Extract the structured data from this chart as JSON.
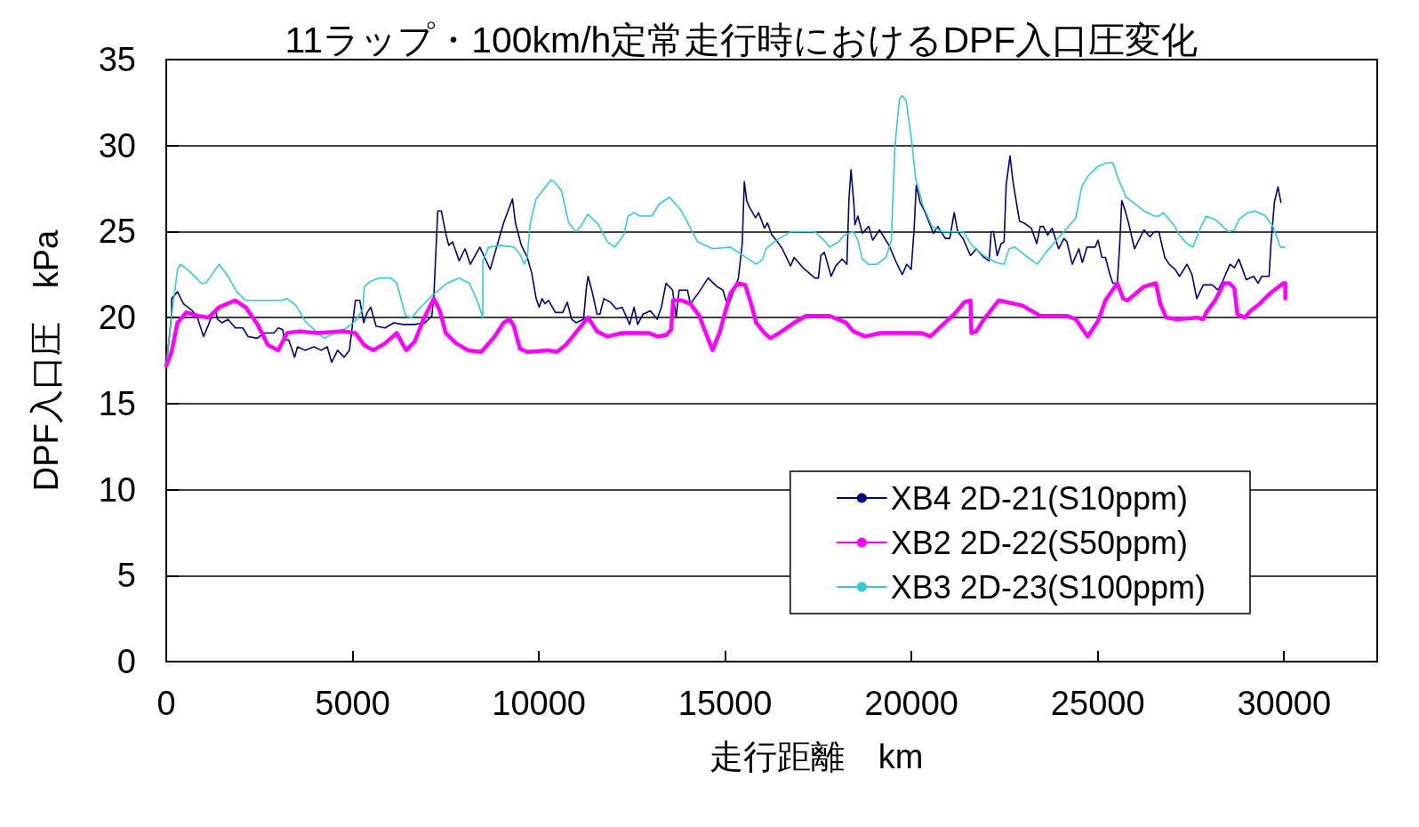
{
  "chart_data": {
    "type": "line",
    "title": "11ラップ・100km/h定常走行時におけるDPF入口圧変化",
    "xlabel": "走行距離　km",
    "ylabel": "DPF入口圧　kPa",
    "xlim": [
      0,
      32500
    ],
    "xticks": [
      0,
      5000,
      10000,
      15000,
      20000,
      25000,
      30000
    ],
    "ylim": [
      0,
      35
    ],
    "yticks": [
      0,
      5,
      10,
      15,
      20,
      25,
      30,
      35
    ],
    "grid": "y",
    "legend": "bottom right",
    "marker": "none",
    "line_style": "solid",
    "series": [
      {
        "name": "XB4 2D-21(S10ppm)",
        "color": "#000080",
        "x": [
          0,
          143,
          143,
          302,
          461,
          700,
          820,
          1002,
          1137,
          1257,
          1336,
          1376,
          1496,
          1655,
          1853,
          2052,
          2196,
          2450,
          2609,
          2888,
          3007,
          3126,
          3166,
          3286,
          3445,
          3524,
          3723,
          3962,
          4161,
          4320,
          4439,
          4598,
          4773,
          4916,
          5075,
          5195,
          5298,
          5393,
          5489,
          5632,
          5871,
          6109,
          6348,
          6666,
          6945,
          7128,
          7183,
          7287,
          7382,
          7501,
          7581,
          7684,
          7860,
          8019,
          8162,
          8416,
          8694,
          9053,
          9292,
          9371,
          9530,
          9689,
          9808,
          9928,
          10007,
          10087,
          10166,
          10261,
          10444,
          10643,
          10762,
          10881,
          11000,
          11199,
          11278,
          11322,
          11441,
          11561,
          11640,
          11744,
          11919,
          12078,
          12237,
          12436,
          12555,
          12651,
          12794,
          12993,
          13176,
          13287,
          13414,
          13589,
          13685,
          13764,
          13987,
          14067,
          14305,
          14544,
          14783,
          14942,
          15021,
          15101,
          15355,
          15459,
          15514,
          15578,
          15657,
          15816,
          15896,
          16055,
          16135,
          16254,
          16374,
          16533,
          16755,
          16851,
          17089,
          17407,
          17503,
          17567,
          17662,
          17845,
          17965,
          18140,
          18267,
          18323,
          18378,
          18458,
          18482,
          18561,
          18681,
          18856,
          18959,
          19142,
          19397,
          19595,
          19754,
          19874,
          19993,
          20073,
          20128,
          20232,
          20351,
          20590,
          20709,
          20908,
          21027,
          21147,
          21242,
          21385,
          21584,
          21743,
          21942,
          22085,
          22141,
          22200,
          22303,
          22406,
          22486,
          22542,
          22645,
          22725,
          22900,
          23019,
          23218,
          23361,
          23457,
          23536,
          23656,
          23775,
          23950,
          24093,
          24173,
          24316,
          24491,
          24586,
          24714,
          24928,
          25008,
          25111,
          25207,
          25326,
          25405,
          25525,
          25588,
          25644,
          25724,
          25827,
          25986,
          26241,
          26400,
          26519,
          26639,
          26798,
          26917,
          27076,
          27195,
          27394,
          27530,
          27657,
          27832,
          28070,
          28229,
          28349,
          28548,
          28667,
          28786,
          28985,
          29184,
          29303,
          29407,
          29598,
          29646,
          29741,
          29836,
          29916
        ],
        "values": [
          17.2,
          20.1,
          21.1,
          21.5,
          20.8,
          20.4,
          20.1,
          18.9,
          19.6,
          20.3,
          20.3,
          19.9,
          19.7,
          19.9,
          19.4,
          19.4,
          18.9,
          18.8,
          19.1,
          19.1,
          19.4,
          19.3,
          18.7,
          18.7,
          17.7,
          18.3,
          18.1,
          18.3,
          18.1,
          18.3,
          17.4,
          18.1,
          17.7,
          18.1,
          21.0,
          21.0,
          19.7,
          20.3,
          20.6,
          19.5,
          19.4,
          19.7,
          19.6,
          19.6,
          19.7,
          20.1,
          21.3,
          26.2,
          26.2,
          24.9,
          24.2,
          24.4,
          23.3,
          24.0,
          23.1,
          24.1,
          22.8,
          25.5,
          26.9,
          25.5,
          24.2,
          23.5,
          22.6,
          21.1,
          20.6,
          21.1,
          20.8,
          21.0,
          20.3,
          20.3,
          20.9,
          19.9,
          19.7,
          19.9,
          21.8,
          22.4,
          21.4,
          20.2,
          20.2,
          21.1,
          20.9,
          20.5,
          20.6,
          19.6,
          20.6,
          19.6,
          20.2,
          20.4,
          19.9,
          20.6,
          22.0,
          21.6,
          20.0,
          21.6,
          21.6,
          20.8,
          21.5,
          22.3,
          21.8,
          21.6,
          21.0,
          20.8,
          22.3,
          24.3,
          27.9,
          26.8,
          26.4,
          25.8,
          26.1,
          25.2,
          25.5,
          24.8,
          24.5,
          24.0,
          23.0,
          23.5,
          22.9,
          22.3,
          22.3,
          23.6,
          23.8,
          22.4,
          23.0,
          23.4,
          23.1,
          26.9,
          28.6,
          26.5,
          25.4,
          25.9,
          24.9,
          25.3,
          24.5,
          25.1,
          24.2,
          23.2,
          22.5,
          23.1,
          22.8,
          25.2,
          27.7,
          26.7,
          26.2,
          24.9,
          25.3,
          24.6,
          24.6,
          26.1,
          25.0,
          24.6,
          23.6,
          24.0,
          23.5,
          23.3,
          25.0,
          25.0,
          23.6,
          24.3,
          24.4,
          27.7,
          29.4,
          27.9,
          25.6,
          25.5,
          25.2,
          24.3,
          25.3,
          25.3,
          24.8,
          25.2,
          24.0,
          24.6,
          24.4,
          23.1,
          24.0,
          23.2,
          24.1,
          24.1,
          24.5,
          23.5,
          23.5,
          22.5,
          22.0,
          22.0,
          24.2,
          26.8,
          26.3,
          25.5,
          24.0,
          25.1,
          24.7,
          25.0,
          25.0,
          23.5,
          23.1,
          22.8,
          22.4,
          23.1,
          22.5,
          21.1,
          21.9,
          21.9,
          21.6,
          22.1,
          23.1,
          22.9,
          23.4,
          22.2,
          22.4,
          22.0,
          22.4,
          22.4,
          24.2,
          26.7,
          27.6,
          26.7
        ]
      },
      {
        "name": "XB2 2D-22(S50ppm)",
        "color": "#ff00ff",
        "x": [
          0,
          143,
          302,
          541,
          859,
          1137,
          1416,
          1853,
          2132,
          2450,
          2729,
          3007,
          3245,
          3564,
          4041,
          4757,
          5075,
          5314,
          5553,
          5871,
          6189,
          6332,
          6443,
          6666,
          6905,
          7183,
          7342,
          7501,
          7780,
          8099,
          8456,
          8814,
          9053,
          9212,
          9331,
          9490,
          9689,
          10245,
          10484,
          10722,
          11278,
          11322,
          11561,
          11839,
          12237,
          12953,
          13192,
          13430,
          13550,
          13605,
          13828,
          14067,
          14305,
          14464,
          14663,
          14862,
          15140,
          15339,
          15538,
          15697,
          15833,
          16055,
          16214,
          16453,
          16851,
          17169,
          17805,
          18243,
          18442,
          18760,
          19158,
          20271,
          20510,
          20749,
          21147,
          21425,
          21584,
          21608,
          21743,
          21942,
          22343,
          22979,
          23457,
          24173,
          24411,
          24730,
          25008,
          25207,
          25525,
          25684,
          25803,
          26241,
          26559,
          26678,
          26837,
          27116,
          27673,
          27832,
          27912,
          28150,
          28389,
          28532,
          28667,
          28747,
          28946,
          29105,
          29343,
          29622,
          29980,
          30035,
          30035
        ],
        "values": [
          17.2,
          18.0,
          19.7,
          20.3,
          20.1,
          20.0,
          20.6,
          21.0,
          20.6,
          19.6,
          18.4,
          18.1,
          19.1,
          19.2,
          19.1,
          19.2,
          19.1,
          18.4,
          18.1,
          18.5,
          19.1,
          18.5,
          18.1,
          18.6,
          19.9,
          21.1,
          20.4,
          19.1,
          18.5,
          18.1,
          18.0,
          18.9,
          19.7,
          19.9,
          19.5,
          18.2,
          18.0,
          18.1,
          18.0,
          18.4,
          19.9,
          20.0,
          19.2,
          18.9,
          19.1,
          19.1,
          18.9,
          19.0,
          19.3,
          21.0,
          21.0,
          20.8,
          20.1,
          19.2,
          18.1,
          19.2,
          21.4,
          22.0,
          21.9,
          20.8,
          19.7,
          19.1,
          18.8,
          19.1,
          19.7,
          20.1,
          20.1,
          19.7,
          19.2,
          18.9,
          19.1,
          19.1,
          18.9,
          19.4,
          20.2,
          20.9,
          21.0,
          19.1,
          19.2,
          19.9,
          21.0,
          20.7,
          20.1,
          20.1,
          19.9,
          18.9,
          19.8,
          21.0,
          22.0,
          21.1,
          21.0,
          21.8,
          22.0,
          20.8,
          20.0,
          19.9,
          20.0,
          19.9,
          20.3,
          21.0,
          22.0,
          22.0,
          21.7,
          20.2,
          20.0,
          20.4,
          20.8,
          21.4,
          22.0,
          22.0,
          21.1
        ]
      },
      {
        "name": "XB3 2D-23(S100ppm)",
        "color": "#33cccc",
        "x": [
          0,
          143,
          302,
          382,
          620,
          939,
          1058,
          1257,
          1416,
          1655,
          1893,
          2132,
          2371,
          3087,
          3245,
          3484,
          3723,
          3962,
          4240,
          4518,
          4837,
          5075,
          5274,
          5314,
          5473,
          5712,
          6030,
          6189,
          6285,
          6428,
          6587,
          6826,
          7144,
          7541,
          7860,
          8138,
          8377,
          8496,
          8496,
          8655,
          8973,
          9331,
          9490,
          9610,
          9689,
          9769,
          9928,
          10325,
          10404,
          10603,
          10802,
          11000,
          11159,
          11278,
          11322,
          11600,
          11839,
          12038,
          12277,
          12396,
          12555,
          12714,
          13032,
          13231,
          13510,
          13828,
          14067,
          14265,
          14663,
          15140,
          15419,
          15833,
          16015,
          16095,
          16374,
          16771,
          17407,
          17646,
          17805,
          18045,
          18203,
          18442,
          18561,
          18681,
          18840,
          19078,
          19317,
          19460,
          19556,
          19675,
          19754,
          19858,
          19993,
          20112,
          20311,
          20550,
          20828,
          21385,
          21624,
          21942,
          22263,
          22486,
          22621,
          22780,
          23059,
          23377,
          23616,
          24093,
          24411,
          24570,
          24729,
          25008,
          25246,
          25405,
          25565,
          25763,
          26241,
          26519,
          26639,
          26758,
          27036,
          27195,
          27394,
          27553,
          27752,
          27912,
          28150,
          28508,
          28667,
          28786,
          29025,
          29224,
          29502,
          29701,
          29900,
          30019
        ],
        "values": [
          17.2,
          20.1,
          22.8,
          23.1,
          22.7,
          22.0,
          22.0,
          22.6,
          23.1,
          22.4,
          21.5,
          21.0,
          21.0,
          21.0,
          21.1,
          20.7,
          19.8,
          19.3,
          18.8,
          19.1,
          19.4,
          19.8,
          20.5,
          21.8,
          22.1,
          22.3,
          22.3,
          22.0,
          21.2,
          20.1,
          20.0,
          20.6,
          21.3,
          22.0,
          22.3,
          22.0,
          20.8,
          20.0,
          23.3,
          24.1,
          24.2,
          24.1,
          23.7,
          23.1,
          23.5,
          25.5,
          26.9,
          28.0,
          27.9,
          27.4,
          25.5,
          25.0,
          25.4,
          25.9,
          26.0,
          25.4,
          24.4,
          24.1,
          24.8,
          25.9,
          26.1,
          25.9,
          25.9,
          26.6,
          27.0,
          26.2,
          25.2,
          24.4,
          24.0,
          24.1,
          23.7,
          23.1,
          23.4,
          24.0,
          24.5,
          25.0,
          25.0,
          24.5,
          24.1,
          24.4,
          24.8,
          25.0,
          24.5,
          23.4,
          23.1,
          23.1,
          23.5,
          24.5,
          29.9,
          32.7,
          32.9,
          32.6,
          30.5,
          28.1,
          26.5,
          25.3,
          25.0,
          25.0,
          24.2,
          23.6,
          23.2,
          23.1,
          24.0,
          24.1,
          23.6,
          23.1,
          23.8,
          25.0,
          25.8,
          27.6,
          28.2,
          28.8,
          29.0,
          29.0,
          28.0,
          27.0,
          26.2,
          25.9,
          25.9,
          26.1,
          25.4,
          24.8,
          24.3,
          24.1,
          25.2,
          25.9,
          25.7,
          25.0,
          25.1,
          25.7,
          26.1,
          26.2,
          25.9,
          25.3,
          24.1,
          24.1
        ]
      }
    ]
  }
}
